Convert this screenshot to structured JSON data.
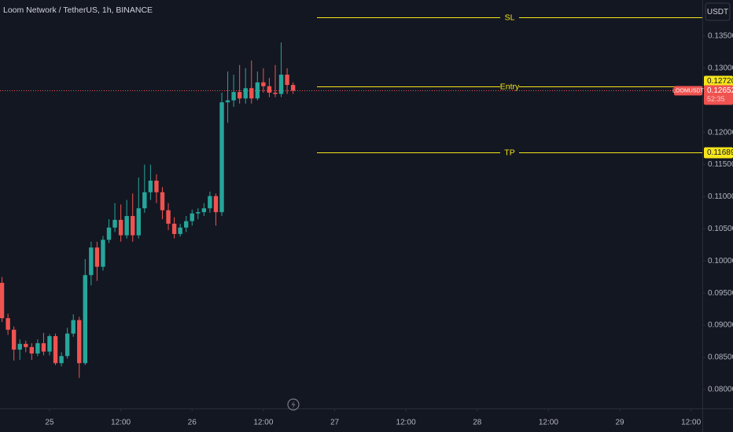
{
  "chart_data": {
    "type": "candlestick",
    "title": "Loom Network / TetherUS, 1h, BINANCE",
    "currency": "USDT",
    "x": [
      -8,
      -7,
      -6,
      -5,
      -4,
      -3,
      -2,
      -1,
      0,
      1,
      2,
      3,
      4,
      5,
      6,
      7,
      8,
      9,
      10,
      11,
      12,
      13,
      14,
      15,
      16,
      17,
      18,
      19,
      20,
      21,
      22,
      23,
      24,
      25,
      26,
      27,
      28,
      29,
      30,
      31,
      32,
      33,
      34,
      35,
      36,
      37,
      38,
      39,
      40,
      41
    ],
    "open": [
      0.0966,
      0.0911,
      0.0893,
      0.0862,
      0.0871,
      0.0866,
      0.0856,
      0.0872,
      0.0859,
      0.0883,
      0.0841,
      0.0852,
      0.0887,
      0.0908,
      0.0841,
      0.0978,
      0.1021,
      0.0991,
      0.1033,
      0.1052,
      0.1064,
      0.104,
      0.107,
      0.104,
      0.1082,
      0.1107,
      0.1125,
      0.1107,
      0.1079,
      0.1058,
      0.1042,
      0.1052,
      0.1062,
      0.1074,
      0.1076,
      0.1082,
      0.1101,
      0.1076,
      0.1247,
      0.125,
      0.1263,
      0.1253,
      0.1269,
      0.1253,
      0.1278,
      0.1272,
      0.1262,
      0.126,
      0.129,
      0.1274
    ],
    "high": [
      0.0975,
      0.0918,
      0.0898,
      0.0878,
      0.0876,
      0.0872,
      0.0878,
      0.0888,
      0.0886,
      0.0887,
      0.0858,
      0.0896,
      0.0917,
      0.0913,
      0.1003,
      0.103,
      0.103,
      0.1039,
      0.1065,
      0.109,
      0.1088,
      0.1095,
      0.1105,
      0.113,
      0.115,
      0.115,
      0.1135,
      0.1115,
      0.109,
      0.1068,
      0.1058,
      0.107,
      0.108,
      0.1082,
      0.109,
      0.1108,
      0.1105,
      0.1262,
      0.1295,
      0.129,
      0.1305,
      0.13,
      0.1312,
      0.1295,
      0.13,
      0.1285,
      0.1305,
      0.134,
      0.13,
      0.1278
    ],
    "low": [
      0.0905,
      0.0885,
      0.0845,
      0.0846,
      0.0858,
      0.0846,
      0.0852,
      0.0853,
      0.0853,
      0.0838,
      0.0836,
      0.0848,
      0.0882,
      0.0818,
      0.0838,
      0.0962,
      0.0969,
      0.0985,
      0.1028,
      0.1045,
      0.103,
      0.1035,
      0.103,
      0.1035,
      0.1075,
      0.1095,
      0.109,
      0.1065,
      0.1048,
      0.1035,
      0.1038,
      0.1045,
      0.1055,
      0.1065,
      0.107,
      0.1075,
      0.1055,
      0.107,
      0.1215,
      0.124,
      0.1245,
      0.1245,
      0.1245,
      0.125,
      0.1262,
      0.1255,
      0.1255,
      0.1255,
      0.126,
      0.126
    ],
    "close": [
      0.0911,
      0.0893,
      0.0862,
      0.0871,
      0.0866,
      0.0856,
      0.0872,
      0.0859,
      0.0883,
      0.0841,
      0.0852,
      0.0887,
      0.0908,
      0.0841,
      0.0978,
      0.1021,
      0.0991,
      0.1033,
      0.1052,
      0.1064,
      0.104,
      0.107,
      0.104,
      0.1082,
      0.1107,
      0.1125,
      0.1107,
      0.1079,
      0.1058,
      0.1042,
      0.1052,
      0.1062,
      0.1074,
      0.1076,
      0.1082,
      0.1101,
      0.1076,
      0.1247,
      0.125,
      0.1263,
      0.1253,
      0.1269,
      0.1253,
      0.1278,
      0.1272,
      0.1262,
      0.126,
      0.129,
      0.1274,
      0.1265
    ],
    "up_color": "#26a69a",
    "down_color": "#ef5350",
    "xlim": [
      -8.34,
      109.9
    ],
    "xticks": [
      {
        "value": 0,
        "label": "25"
      },
      {
        "value": 12,
        "label": "12:00"
      },
      {
        "value": 24,
        "label": "26"
      },
      {
        "value": 36,
        "label": "12:00"
      },
      {
        "value": 48,
        "label": "27"
      },
      {
        "value": 60,
        "label": "12:00"
      },
      {
        "value": 72,
        "label": "28"
      },
      {
        "value": 84,
        "label": "12:00"
      },
      {
        "value": 96,
        "label": "29"
      },
      {
        "value": 108,
        "label": "12:00"
      }
    ],
    "ylim": [
      0.07705,
      0.14062
    ],
    "yticks": [
      {
        "value": 0.08,
        "label": "0.08000"
      },
      {
        "value": 0.085,
        "label": "0.08500"
      },
      {
        "value": 0.09,
        "label": "0.09000"
      },
      {
        "value": 0.095,
        "label": "0.09500"
      },
      {
        "value": 0.1,
        "label": "0.10000"
      },
      {
        "value": 0.105,
        "label": "0.10500"
      },
      {
        "value": 0.11,
        "label": "0.11000"
      },
      {
        "value": 0.115,
        "label": "0.11500"
      },
      {
        "value": 0.12,
        "label": "0.12000"
      },
      {
        "value": 0.125,
        "label": "0.12500"
      },
      {
        "value": 0.13,
        "label": "0.13000"
      },
      {
        "value": 0.135,
        "label": "0.13500"
      }
    ],
    "levels": [
      {
        "name": "SL",
        "value": 0.13793,
        "color": "#f5e51b"
      },
      {
        "name": "Entry",
        "value": 0.1272,
        "value_label": "0.12720",
        "color": "#f5e51b"
      },
      {
        "name": "TP",
        "value": 0.11689,
        "value_label": "0.11689",
        "color": "#f5e51b"
      }
    ],
    "last_price": {
      "symbol": "LOOMUSDT",
      "value": 0.12652,
      "countdown": "52:35",
      "color": "#ef5350"
    }
  }
}
